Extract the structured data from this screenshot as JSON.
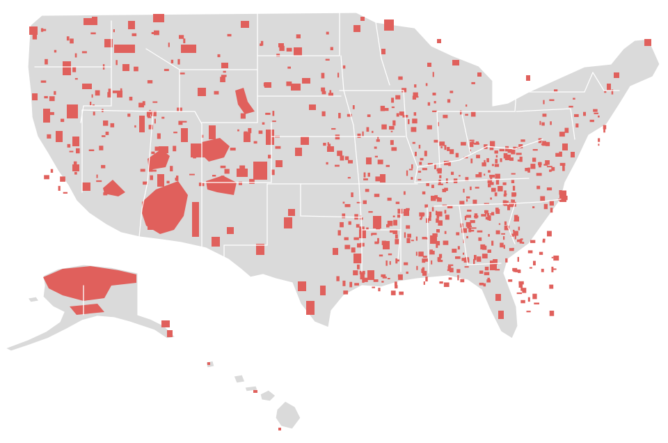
{
  "map": {
    "colors": {
      "background": "#ffffff",
      "land": "#dadada",
      "border": "#ffffff",
      "highlighted": "#e0605c"
    },
    "regions": [
      "contiguous-us",
      "alaska",
      "hawaii"
    ],
    "legend": null,
    "title": ""
  }
}
